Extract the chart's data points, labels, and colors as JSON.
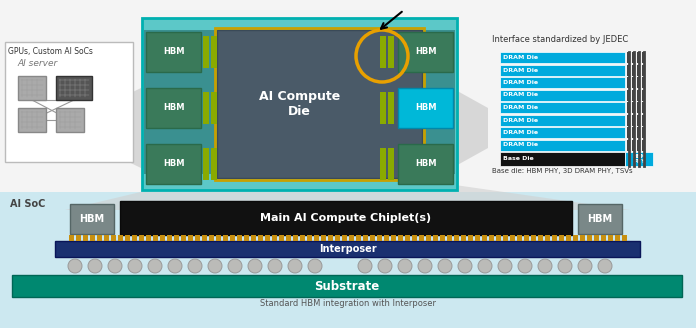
{
  "bg_color": "#ffffff",
  "ai_soc_bg": "#cce8f0",
  "teal_outer": "#5cc8c8",
  "teal_border_color": "#00b0b0",
  "dark_compute": "#4a5a68",
  "gold_border": "#c8a000",
  "hbm_green_dark": "#3a7a5a",
  "hbm_blue_highlight": "#00b8d8",
  "green_connector": "#7a9a10",
  "dram_blue": "#00aadd",
  "base_die_black": "#111111",
  "interposer_navy": "#1a3070",
  "substrate_teal": "#008870",
  "bump_gold": "#c89010",
  "ball_gray": "#b8b8b8",
  "gray_arrow": "#c0c0c0",
  "jedec_title": "Interface standardized by JEDEC",
  "base_die_label": "Base die: HBM PHY, 3D DRAM PHY, TSVs",
  "bottom_label": "Standard HBM integration with Interposer",
  "gpu_label": "GPUs, Custom AI SoCs",
  "ai_server_label": "AI server",
  "ai_soc_label": "AI SoC",
  "compute_die_label": "AI Compute\nDie",
  "hbm_label": "HBM",
  "main_chiplet_label": "Main AI Compute Chiplet(s)",
  "interposer_label": "Interposer",
  "substrate_label": "Substrate",
  "dram_rows": 8
}
